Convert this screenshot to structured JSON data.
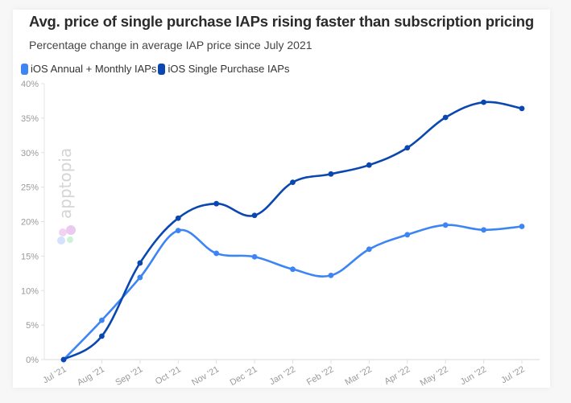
{
  "header": {
    "title": "Avg. price of single purchase IAPs rising faster than subscription pricing",
    "subtitle": "Percentage change in average IAP price since July 2021"
  },
  "legend": [
    {
      "label": "iOS Annual + Monthly IAPs",
      "color": "#3d85f5"
    },
    {
      "label": "iOS Single Purchase IAPs",
      "color": "#0a47b0"
    }
  ],
  "watermark": {
    "text": "apptopia",
    "logo": "apptopia-clover-logo"
  },
  "chart_data": {
    "type": "line",
    "title": "Avg. price of single purchase IAPs rising faster than subscription pricing",
    "subtitle": "Percentage change in average IAP price since July 2021",
    "xlabel": "",
    "ylabel": "",
    "categories": [
      "Jul '21",
      "Aug '21",
      "Sep '21",
      "Oct '21",
      "Nov '21",
      "Dec '21",
      "Jan '22",
      "Feb '22",
      "Mar '22",
      "Apr '22",
      "May '22",
      "Jun '22",
      "Jul '22"
    ],
    "y_ticks": [
      "0%",
      "5%",
      "10%",
      "15%",
      "20%",
      "25%",
      "30%",
      "35%",
      "40%"
    ],
    "ylim": [
      0,
      40
    ],
    "grid": false,
    "legend_position": "top-left",
    "series": [
      {
        "name": "iOS Annual + Monthly IAPs",
        "color": "#3d85f5",
        "values": [
          0,
          5.7,
          11.9,
          18.7,
          15.4,
          14.9,
          13.1,
          12.2,
          16.0,
          18.1,
          19.5,
          18.8,
          19.3
        ]
      },
      {
        "name": "iOS Single Purchase IAPs",
        "color": "#0a47b0",
        "values": [
          0,
          3.4,
          14.0,
          20.5,
          22.6,
          20.9,
          25.7,
          26.9,
          28.2,
          30.7,
          35.1,
          37.3,
          36.4
        ]
      }
    ]
  }
}
